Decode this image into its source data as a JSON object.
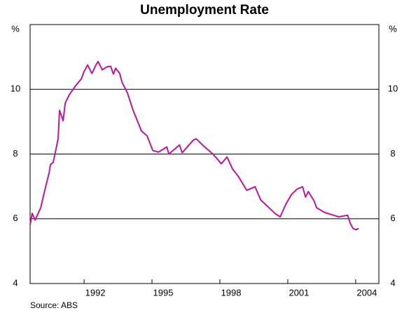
{
  "chart_data": {
    "type": "line",
    "title": "Unemployment Rate",
    "y_unit_label": "%",
    "source": "Source: ABS",
    "x": [
      1989.12,
      1989.21,
      1989.34,
      1989.59,
      1989.71,
      1989.83,
      1989.96,
      1990.02,
      1990.14,
      1990.27,
      1990.36,
      1990.42,
      1990.58,
      1990.67,
      1990.85,
      1991.13,
      1991.38,
      1991.5,
      1991.66,
      1991.85,
      1992.03,
      1992.12,
      1992.31,
      1992.5,
      1992.68,
      1992.8,
      1992.9,
      1993.08,
      1993.18,
      1993.42,
      1993.67,
      1993.92,
      1994.04,
      1994.29,
      1994.54,
      1994.79,
      1995.16,
      1995.25,
      1995.47,
      1995.72,
      1995.84,
      1996.09,
      1996.33,
      1996.46,
      1996.83,
      1997.2,
      1997.57,
      1997.82,
      1998.07,
      1998.32,
      1998.69,
      1999.06,
      1999.31,
      1999.68,
      1999.93,
      2000.17,
      2000.42,
      2000.67,
      2000.92,
      2001.16,
      2001.29,
      2001.41,
      2001.66,
      2001.78,
      2002.15,
      2002.53,
      2002.77,
      2003.15,
      2003.27,
      2003.39,
      2003.52,
      2003.64
    ],
    "series": [
      {
        "name": "Unemployment rate",
        "color": "#c0149b",
        "values": [
          5.81,
          6.17,
          5.96,
          6.34,
          6.71,
          7.05,
          7.42,
          7.68,
          7.74,
          8.17,
          8.49,
          9.35,
          9.03,
          9.57,
          9.83,
          10.11,
          10.32,
          10.54,
          10.75,
          10.49,
          10.75,
          10.86,
          10.6,
          10.69,
          10.71,
          10.47,
          10.65,
          10.49,
          10.22,
          9.89,
          9.35,
          8.92,
          8.71,
          8.56,
          8.11,
          8.06,
          8.22,
          8.0,
          8.13,
          8.28,
          8.04,
          8.24,
          8.43,
          8.47,
          8.22,
          8.0,
          7.7,
          7.91,
          7.53,
          7.31,
          6.88,
          6.99,
          6.58,
          6.34,
          6.17,
          6.06,
          6.45,
          6.75,
          6.92,
          6.99,
          6.67,
          6.84,
          6.56,
          6.34,
          6.19,
          6.11,
          6.06,
          6.11,
          5.85,
          5.7,
          5.66,
          5.7
        ]
      }
    ],
    "xlim": [
      1989.12,
      2004.53
    ],
    "xticks": [
      1992,
      1995,
      1998,
      2001,
      2004
    ],
    "ylim": [
      4,
      12
    ],
    "yticks": [
      4,
      6,
      8,
      10
    ],
    "grid": true
  }
}
